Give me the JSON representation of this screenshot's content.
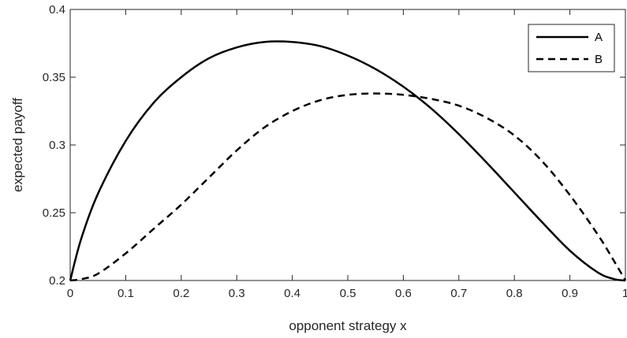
{
  "chart_data": {
    "type": "line",
    "title": "",
    "xlabel": "opponent strategy x",
    "ylabel": "expected payoff",
    "xlim": [
      0,
      1
    ],
    "ylim": [
      0.2,
      0.4
    ],
    "grid": false,
    "legend_position": "top-right",
    "x_ticks": [
      0,
      0.1,
      0.2,
      0.3,
      0.4,
      0.5,
      0.6,
      0.7,
      0.8,
      0.9,
      1
    ],
    "x_tick_labels": [
      "0",
      "0.1",
      "0.2",
      "0.3",
      "0.4",
      "0.5",
      "0.6",
      "0.7",
      "0.8",
      "0.9",
      "1"
    ],
    "y_ticks": [
      0.2,
      0.25,
      0.3,
      0.35,
      0.4
    ],
    "y_tick_labels": [
      "0.2",
      "0.25",
      "0.3",
      "0.35",
      "0.4"
    ],
    "x": [
      0,
      0.02,
      0.05,
      0.1,
      0.15,
      0.2,
      0.25,
      0.3,
      0.35,
      0.4,
      0.45,
      0.5,
      0.55,
      0.6,
      0.65,
      0.7,
      0.75,
      0.8,
      0.85,
      0.9,
      0.95,
      0.98,
      1
    ],
    "series": [
      {
        "name": "A",
        "style": "solid",
        "color": "#000000",
        "values": [
          0.2,
          0.231,
          0.264,
          0.303,
          0.331,
          0.35,
          0.364,
          0.372,
          0.376,
          0.376,
          0.373,
          0.366,
          0.356,
          0.343,
          0.327,
          0.308,
          0.287,
          0.265,
          0.243,
          0.222,
          0.206,
          0.201,
          0.2
        ]
      },
      {
        "name": "B",
        "style": "dashed",
        "color": "#000000",
        "values": [
          0.2,
          0.201,
          0.205,
          0.22,
          0.238,
          0.256,
          0.276,
          0.296,
          0.313,
          0.325,
          0.333,
          0.337,
          0.338,
          0.337,
          0.334,
          0.329,
          0.32,
          0.307,
          0.288,
          0.263,
          0.234,
          0.214,
          0.2
        ]
      }
    ]
  }
}
